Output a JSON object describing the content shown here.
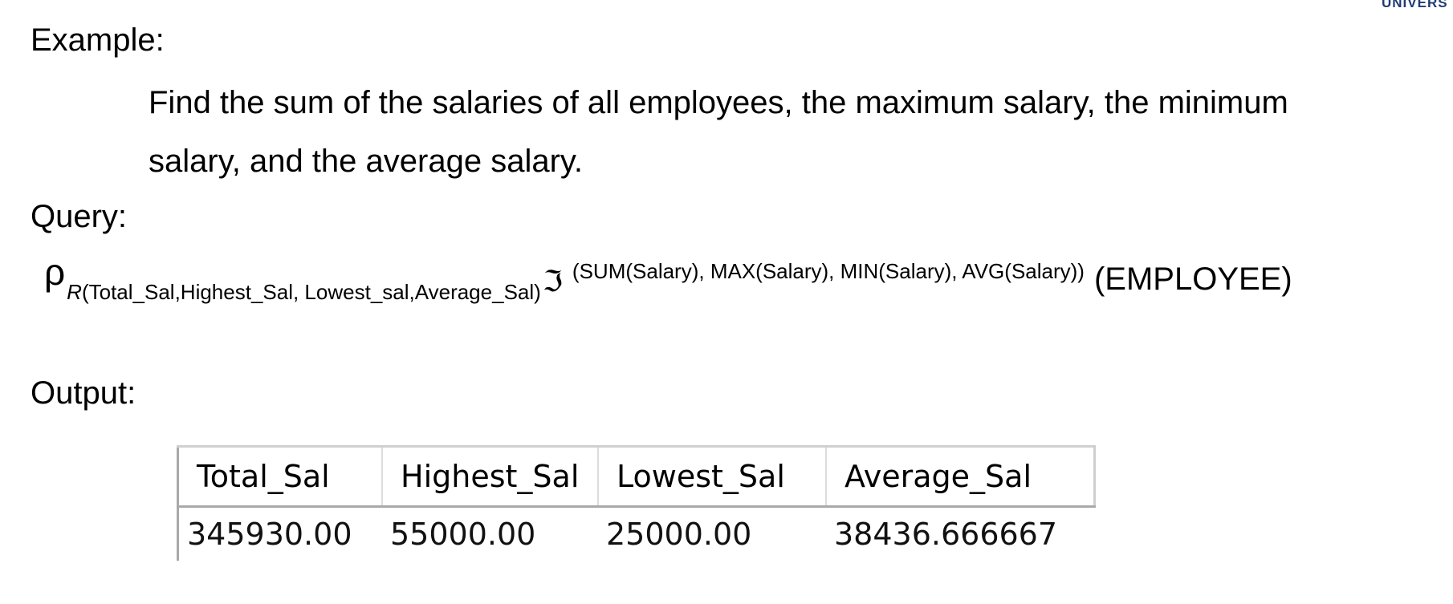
{
  "brand": {
    "corner_text": "UNIVERS"
  },
  "example": {
    "label": "Example:",
    "problem": "Find the sum of the salaries of all employees, the maximum salary, the minimum salary, and the average salary."
  },
  "query": {
    "label": "Query:",
    "rho": "ρ",
    "rename_relation": "R",
    "rename_attrs": "(Total_Sal,Highest_Sal, Lowest_sal,Average_Sal)",
    "agg_symbol": "ℑ",
    "agg_list": "(SUM(Salary), MAX(Salary), MIN(Salary), AVG(Salary))",
    "relation": "(EMPLOYEE)"
  },
  "output": {
    "label": "Output:",
    "table": {
      "headers": [
        "Total_Sal",
        "Highest_Sal",
        "Lowest_Sal",
        "Average_Sal"
      ],
      "rows": [
        [
          "345930.00",
          "55000.00",
          "25000.00",
          "38436.666667"
        ]
      ]
    }
  }
}
